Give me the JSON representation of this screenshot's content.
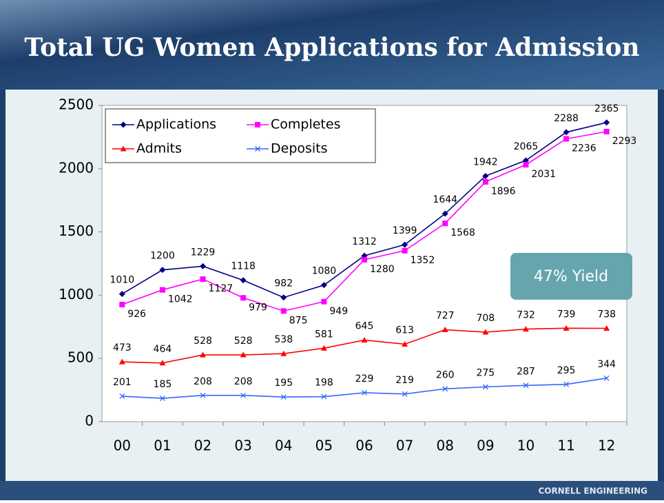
{
  "title": "Total UG Women Applications for Admission",
  "footer": "CORNELL ENGINEERING",
  "chart_data": {
    "type": "line",
    "categories": [
      "00",
      "01",
      "02",
      "03",
      "04",
      "05",
      "06",
      "07",
      "08",
      "09",
      "10",
      "11",
      "12"
    ],
    "series": [
      {
        "name": "Applications",
        "color": "#000080",
        "marker": "diamond",
        "values": [
          1010,
          1200,
          1229,
          1118,
          982,
          1080,
          1312,
          1399,
          1644,
          1942,
          2065,
          2288,
          2365
        ]
      },
      {
        "name": "Completes",
        "color": "#ff00ff",
        "marker": "square",
        "values": [
          926,
          1042,
          1127,
          979,
          875,
          949,
          1280,
          1352,
          1568,
          1896,
          2031,
          2236,
          2293
        ]
      },
      {
        "name": "Admits",
        "color": "#ff0000",
        "marker": "triangle",
        "values": [
          473,
          464,
          528,
          528,
          538,
          581,
          645,
          613,
          727,
          708,
          732,
          739,
          738
        ]
      },
      {
        "name": "Deposits",
        "color": "#3366ff",
        "marker": "x",
        "values": [
          201,
          185,
          208,
          208,
          195,
          198,
          229,
          219,
          260,
          275,
          287,
          295,
          344
        ]
      }
    ],
    "ylim": [
      0,
      2500
    ],
    "yticks": [
      0,
      500,
      1000,
      1500,
      2000,
      2500
    ],
    "legend": "upper left",
    "annotation": "47% Yield"
  }
}
